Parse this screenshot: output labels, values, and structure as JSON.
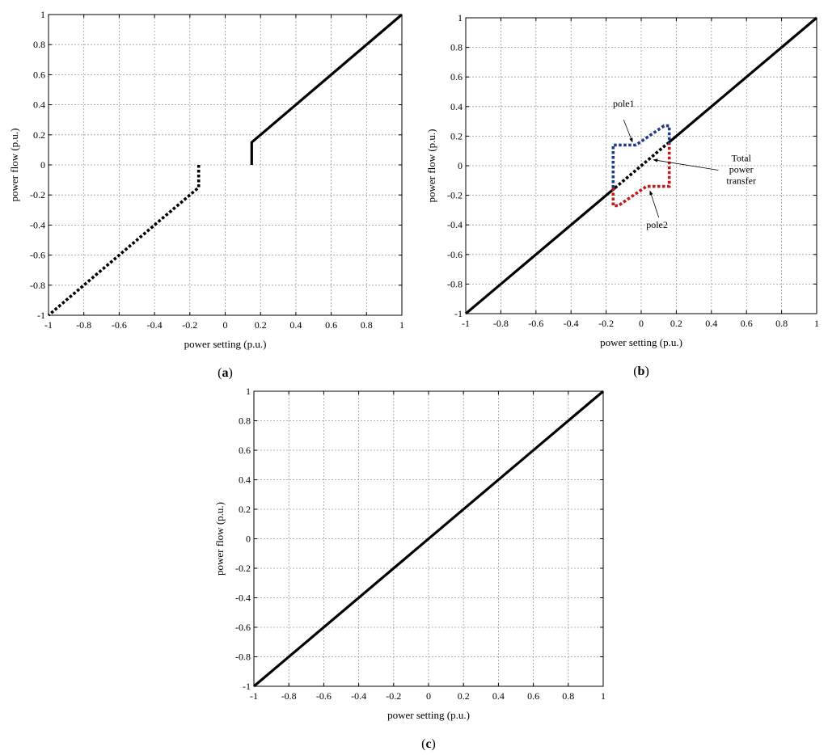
{
  "chart_data": [
    {
      "id": "a",
      "panel_prefix": "(",
      "panel_letter": "a",
      "panel_suffix": ")",
      "type": "line",
      "xlabel": "power setting (p.u.)",
      "ylabel": "power flow (p.u.)",
      "xlim": [
        -1,
        1
      ],
      "ylim": [
        -1,
        1
      ],
      "xticks": [
        "-1",
        "-0.8",
        "-0.6",
        "-0.4",
        "-0.2",
        "0",
        "0.2",
        "0.4",
        "0.6",
        "0.8",
        "1"
      ],
      "yticks": [
        "-1",
        "-0.8",
        "-0.6",
        "-0.4",
        "-0.2",
        "0",
        "0.2",
        "0.4",
        "0.6",
        "0.8",
        "1"
      ],
      "grid": true,
      "series": [
        {
          "style": "solid",
          "color": "#000000",
          "x": [
            0.15,
            0.15,
            0.16,
            1.0
          ],
          "y": [
            0.0,
            0.15,
            0.16,
            1.0
          ]
        },
        {
          "style": "dotted",
          "color": "#000000",
          "x": [
            -0.15,
            -0.15,
            -0.16,
            -1.0
          ],
          "y": [
            0.0,
            -0.15,
            -0.16,
            -1.0
          ]
        }
      ],
      "annotations": []
    },
    {
      "id": "b",
      "panel_prefix": "(",
      "panel_letter": "b",
      "panel_suffix": ")",
      "type": "line",
      "xlabel": "power setting (p.u.)",
      "ylabel": "power flow (p.u.)",
      "xlim": [
        -1,
        1
      ],
      "ylim": [
        -1,
        1
      ],
      "xticks": [
        "-1",
        "-0.8",
        "-0.6",
        "-0.4",
        "-0.2",
        "0",
        "0.2",
        "0.4",
        "0.6",
        "0.8",
        "1"
      ],
      "yticks": [
        "-1",
        "-0.8",
        "-0.6",
        "-0.4",
        "-0.2",
        "0",
        "0.2",
        "0.4",
        "0.6",
        "0.8",
        "1"
      ],
      "grid": true,
      "series": [
        {
          "style": "solid",
          "color": "#000000",
          "x": [
            -1.0,
            -0.15
          ],
          "y": [
            -1.0,
            -0.15
          ]
        },
        {
          "style": "dotted",
          "color": "#000000",
          "x": [
            -0.15,
            0.15
          ],
          "y": [
            -0.15,
            0.15
          ]
        },
        {
          "style": "solid",
          "color": "#000000",
          "x": [
            0.15,
            1.0
          ],
          "y": [
            0.15,
            1.0
          ]
        },
        {
          "style": "dotted",
          "color": "#1f3a8a",
          "x": [
            -0.16,
            -0.16,
            -0.03,
            0.13,
            0.16,
            0.16
          ],
          "y": [
            -0.15,
            0.14,
            0.14,
            0.27,
            0.27,
            0.15
          ]
        },
        {
          "style": "dotted",
          "color": "#c0181b",
          "x": [
            -0.16,
            -0.16,
            -0.13,
            0.03,
            0.16,
            0.16
          ],
          "y": [
            -0.15,
            -0.27,
            -0.27,
            -0.14,
            -0.14,
            0.15
          ]
        }
      ],
      "annotations": [
        {
          "text_lines": [
            "pole1"
          ],
          "text_x": -0.1,
          "text_y": 0.4,
          "arrow_from": [
            -0.1,
            0.31
          ],
          "arrow_to": [
            -0.05,
            0.16
          ]
        },
        {
          "text_lines": [
            "Total",
            "power",
            "transfer"
          ],
          "text_x": 0.57,
          "text_y": 0.03,
          "arrow_from": [
            0.44,
            -0.03
          ],
          "arrow_to": [
            0.07,
            0.04
          ]
        },
        {
          "text_lines": [
            "pole2"
          ],
          "text_x": 0.09,
          "text_y": -0.42,
          "arrow_from": [
            0.1,
            -0.35
          ],
          "arrow_to": [
            0.05,
            -0.17
          ]
        }
      ]
    },
    {
      "id": "c",
      "panel_prefix": "(",
      "panel_letter": "c",
      "panel_suffix": ")",
      "type": "line",
      "xlabel": "power setting (p.u.)",
      "ylabel": "power flow (p.u.)",
      "xlim": [
        -1,
        1
      ],
      "ylim": [
        -1,
        1
      ],
      "xticks": [
        "-1",
        "-0.8",
        "-0.6",
        "-0.4",
        "-0.2",
        "0",
        "0.2",
        "0.4",
        "0.6",
        "0.8",
        "1"
      ],
      "yticks": [
        "-1",
        "-0.8",
        "-0.6",
        "-0.4",
        "-0.2",
        "0",
        "0.2",
        "0.4",
        "0.6",
        "0.8",
        "1"
      ],
      "grid": true,
      "series": [
        {
          "style": "solid",
          "color": "#000000",
          "x": [
            -1.0,
            1.0
          ],
          "y": [
            -1.0,
            1.0
          ]
        }
      ],
      "annotations": []
    }
  ]
}
